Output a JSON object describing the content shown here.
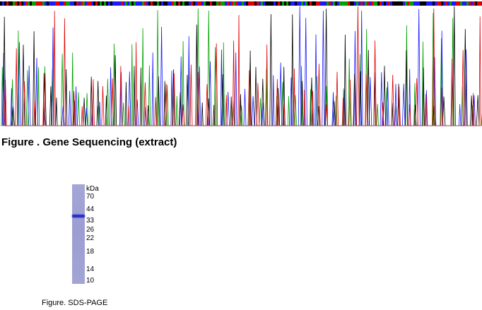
{
  "sequencing_figure": {
    "caption": "Figure . Gene Sequencing (extract)",
    "trace_colors": {
      "A": "#00a000",
      "C": "#1a1aff",
      "G": "#000000",
      "T": "#e00000"
    },
    "base_strip_colors": [
      "#00a000",
      "#1a1aff",
      "#000000",
      "#e00000"
    ]
  },
  "sds_page_figure": {
    "unit_label": "kDa",
    "markers": [
      "70",
      "44",
      "33",
      "26",
      "22",
      "18",
      "14",
      "10"
    ],
    "lane_color": "#a0a2d4",
    "band_color": "#2b32c8",
    "caption": "Figure. SDS-PAGE"
  }
}
